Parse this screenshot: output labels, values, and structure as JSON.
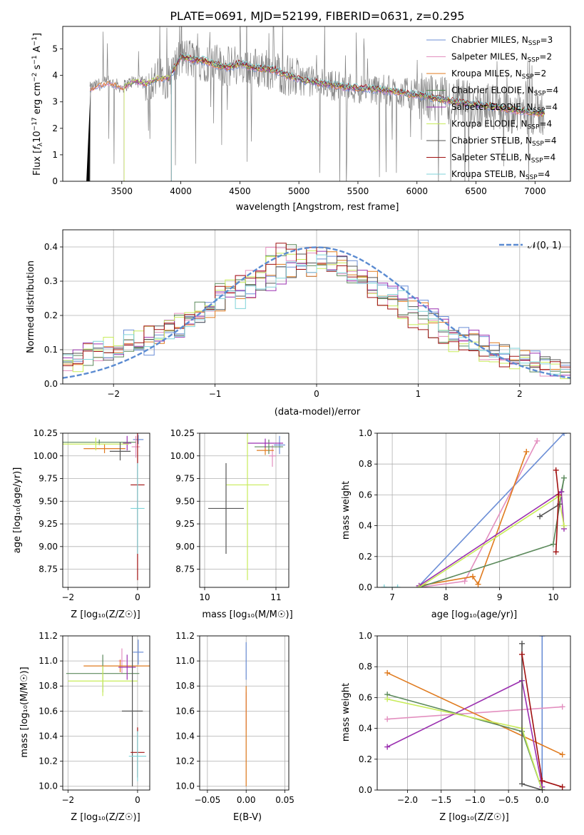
{
  "figure_title": "PLATE=0691, MJD=52199, FIBERID=0631, z=0.295",
  "colors": {
    "chabrier_miles": "#6b8ed6",
    "salpeter_miles": "#e38fbf",
    "kroupa_miles": "#e07b1f",
    "chabrier_elodie": "#5c8a5c",
    "salpeter_elodie": "#9b30b0",
    "kroupa_elodie": "#c8ec5a",
    "chabrier_stelib": "#555555",
    "salpeter_stelib": "#a01010",
    "kroupa_stelib": "#7fd3d8",
    "data": "#808080",
    "normal": "#5b8bd1"
  },
  "panels": {
    "spectrum": {
      "ylabel": "Flux [$f_\\lambda 10^{-17}$ erg cm$^{-2}$ s$^{-1}$ A$^{-1}$]",
      "ylabel_plain": "Flux [fλ10⁻¹⁷ erg cm⁻² s⁻¹ A⁻¹]",
      "xlabel": "wavelength [Angstrom, rest frame]",
      "xlim": [
        3000,
        7300
      ],
      "ylim": [
        0,
        5.85
      ],
      "xticks": [
        "3500",
        "4000",
        "4500",
        "5000",
        "5500",
        "6000",
        "6500",
        "7000"
      ],
      "yticks": [
        "0",
        "1",
        "2",
        "3",
        "4",
        "5"
      ],
      "legend": [
        "Chabrier MILES, N_SSP=3",
        "Salpeter MILES, N_SSP=2",
        "Kroupa MILES, N_SSP=2",
        "Chabrier ELODIE, N_SSP=4",
        "Salpeter ELODIE, N_SSP=4",
        "Kroupa ELODIE, N_SSP=4",
        "Chabrier STELIB, N_SSP=4",
        "Salpeter STELIB, N_SSP=4",
        "Kroupa STELIB, N_SSP=4"
      ]
    },
    "residuals": {
      "ylabel": "Normed distribution",
      "xlabel": "(data-model)/error",
      "legend": "𝒩(0, 1)",
      "xlim": [
        -2.5,
        2.5
      ],
      "ylim": [
        0,
        0.45
      ],
      "xticks": [
        "−2",
        "−1",
        "0",
        "1",
        "2"
      ],
      "yticks": [
        "0.0",
        "0.1",
        "0.2",
        "0.3",
        "0.4"
      ]
    },
    "z_age": {
      "ylabel": "age  [log₁₀(age/yr)]",
      "xlabel": "Z [log₁₀(Z/Z☉)]",
      "xlim": [
        -2.15,
        0.35
      ],
      "ylim": [
        8.55,
        10.25
      ],
      "xticks": [
        "−2",
        "0"
      ],
      "yticks": [
        "8.75",
        "9.00",
        "9.25",
        "9.50",
        "9.75",
        "10.00",
        "10.25"
      ]
    },
    "mass_age": {
      "xlabel": "mass [log₁₀(M/M☉)]",
      "xlim": [
        9.93,
        11.18
      ],
      "ylim": [
        8.55,
        10.25
      ],
      "xticks": [
        "10",
        "11"
      ],
      "yticks": [
        "8.75",
        "9.00",
        "9.25",
        "9.50",
        "9.75",
        "10.00",
        "10.25"
      ]
    },
    "age_weight": {
      "ylabel": "mass weight",
      "xlabel": "age  [log₁₀(age/yr)]",
      "xlim": [
        6.72,
        10.32
      ],
      "ylim": [
        0,
        1
      ],
      "xticks": [
        "7",
        "8",
        "9",
        "10"
      ],
      "yticks": [
        "0.0",
        "0.2",
        "0.4",
        "0.6",
        "0.8",
        "1.0"
      ]
    },
    "z_mass": {
      "ylabel": "mass [log₁₀(M/M☉)]",
      "xlabel": "Z [log₁₀(Z/Z☉)]",
      "xlim": [
        -2.15,
        0.35
      ],
      "ylim": [
        9.97,
        11.2
      ],
      "xticks": [
        "−2",
        "0"
      ],
      "yticks": [
        "10.0",
        "10.2",
        "10.4",
        "10.6",
        "10.8",
        "11.0",
        "11.2"
      ]
    },
    "ebv_mass": {
      "xlabel": "E(B-V)",
      "xlim": [
        -0.06,
        0.055
      ],
      "ylim": [
        9.97,
        11.2
      ],
      "xticks": [
        "−0.05",
        "0.00",
        "0.05"
      ],
      "yticks": [
        "10.0",
        "10.2",
        "10.4",
        "10.6",
        "10.8",
        "11.0",
        "11.2"
      ]
    },
    "z_weight": {
      "ylabel": "mass weight",
      "xlabel": "Z [log₁₀(Z/Z☉)]",
      "xlim": [
        -2.45,
        0.42
      ],
      "ylim": [
        0,
        1
      ],
      "xticks": [
        "−2.0",
        "−1.5",
        "−1.0",
        "−0.5",
        "0.0"
      ],
      "yticks": [
        "0.0",
        "0.2",
        "0.4",
        "0.6",
        "0.8",
        "1.0"
      ]
    }
  },
  "chart_data": [
    {
      "type": "line",
      "title": "PLATE=0691, MJD=52199, FIBERID=0631, z=0.295",
      "xlabel": "wavelength [Angstrom, rest frame]",
      "ylabel": "Flux [fλ10⁻¹⁷ erg cm⁻² s⁻¹ A⁻¹]",
      "xlim": [
        3000,
        7300
      ],
      "ylim": [
        0,
        5.85
      ],
      "grid": false,
      "legend_position": "right",
      "series_names": [
        "Chabrier MILES, N_SSP=3",
        "Salpeter MILES, N_SSP=2",
        "Kroupa MILES, N_SSP=2",
        "Chabrier ELODIE, N_SSP=4",
        "Salpeter ELODIE, N_SSP=4",
        "Kroupa ELODIE, N_SSP=4",
        "Chabrier STELIB, N_SSP=4",
        "Salpeter STELIB, N_SSP=4",
        "Kroupa STELIB, N_SSP=4"
      ],
      "model_envelope": {
        "x": [
          3230,
          3300,
          3400,
          3500,
          3600,
          3700,
          3800,
          3900,
          4000,
          4100,
          4200,
          4300,
          4400,
          4500,
          4600,
          4700,
          4800,
          4900,
          5000,
          5200,
          5400,
          5600,
          5800,
          6000,
          6200,
          6400,
          6600,
          6800,
          7000,
          7080
        ],
        "y": [
          3.5,
          3.65,
          3.75,
          3.55,
          3.8,
          3.7,
          3.9,
          3.9,
          4.7,
          4.6,
          4.55,
          4.4,
          4.3,
          4.45,
          4.3,
          4.25,
          4.2,
          4.0,
          3.85,
          3.7,
          3.55,
          3.5,
          3.4,
          3.25,
          3.1,
          2.95,
          2.85,
          2.7,
          2.6,
          2.55
        ]
      }
    },
    {
      "type": "bar",
      "xlabel": "(data-model)/error",
      "ylabel": "Normed distribution",
      "xlim": [
        -2.5,
        2.5
      ],
      "ylim": [
        0,
        0.45
      ],
      "grid": true,
      "legend_position": "top-right",
      "bin_edges_start": -2.5,
      "bin_width": 0.1,
      "series": [
        {
          "values": [
            0.07,
            0.08,
            0.09,
            0.1,
            0.08,
            0.09,
            0.13,
            0.12,
            0.11,
            0.14,
            0.16,
            0.15,
            0.18,
            0.2,
            0.21,
            0.24,
            0.26,
            0.25,
            0.28,
            0.3,
            0.29,
            0.32,
            0.33,
            0.35,
            0.34,
            0.37,
            0.36,
            0.35,
            0.33,
            0.32,
            0.3,
            0.28,
            0.27,
            0.26,
            0.24,
            0.22,
            0.2,
            0.18,
            0.16,
            0.14,
            0.13,
            0.12,
            0.1,
            0.09,
            0.08,
            0.07,
            0.07,
            0.06,
            0.05,
            0.05
          ]
        },
        {
          "values": [
            0.05,
            0.06,
            0.08,
            0.09,
            0.11,
            0.1,
            0.12,
            0.13,
            0.14,
            0.13,
            0.17,
            0.19,
            0.2,
            0.22,
            0.24,
            0.27,
            0.29,
            0.3,
            0.32,
            0.34,
            0.37,
            0.39,
            0.38,
            0.36,
            0.37,
            0.35,
            0.34,
            0.33,
            0.31,
            0.29,
            0.27,
            0.25,
            0.23,
            0.21,
            0.19,
            0.17,
            0.16,
            0.14,
            0.12,
            0.11,
            0.1,
            0.09,
            0.08,
            0.07,
            0.06,
            0.06,
            0.05,
            0.05,
            0.04,
            0.04
          ]
        }
      ],
      "reference_curve": {
        "name": "𝒩(0, 1)",
        "mean": 0,
        "sigma": 1
      }
    },
    {
      "type": "scatter",
      "xlabel": "Z [log₁₀(Z/Z☉)]",
      "ylabel": "age  [log₁₀(age/yr)]",
      "xlim": [
        -2.15,
        0.35
      ],
      "ylim": [
        8.55,
        10.25
      ],
      "grid": true,
      "points": [
        {
          "x": 0.02,
          "y": 10.18,
          "xerr": 0.15,
          "yerr": 0.05
        },
        {
          "x": -0.05,
          "y": 10.1,
          "xerr": 0.12,
          "yerr": 0.12
        },
        {
          "x": -0.95,
          "y": 10.08,
          "xerr": 0.6,
          "yerr": 0.05
        },
        {
          "x": -1.1,
          "y": 10.15,
          "xerr": 1.05,
          "yerr": 0.03
        },
        {
          "x": -0.3,
          "y": 10.14,
          "xerr": 0.12,
          "yerr": 0.08
        },
        {
          "x": -1.2,
          "y": 10.13,
          "xerr": 0.95,
          "yerr": 0.07
        },
        {
          "x": -0.5,
          "y": 10.05,
          "xerr": 0.3,
          "yerr": 0.1
        },
        {
          "x": 0.0,
          "y": 9.68,
          "xerr": 0.2,
          "yerr": 1.05
        },
        {
          "x": 0.0,
          "y": 9.42,
          "xerr": 0.2,
          "yerr": 0.5
        }
      ]
    },
    {
      "type": "scatter",
      "xlabel": "mass [log₁₀(M/M☉)]",
      "xlim": [
        9.93,
        11.18
      ],
      "ylim": [
        8.55,
        10.25
      ],
      "grid": true,
      "points": [
        {
          "x": 11.05,
          "y": 10.12,
          "xerr": 0.08,
          "yerr": 0.1
        },
        {
          "x": 10.95,
          "y": 10.0,
          "xerr": 0.05,
          "yerr": 0.12
        },
        {
          "x": 10.85,
          "y": 10.06,
          "xerr": 0.12,
          "yerr": 0.05
        },
        {
          "x": 10.9,
          "y": 10.1,
          "xerr": 0.2,
          "yerr": 0.08
        },
        {
          "x": 10.85,
          "y": 10.14,
          "xerr": 0.25,
          "yerr": 0.05
        },
        {
          "x": 10.6,
          "y": 9.68,
          "xerr": 0.3,
          "yerr": 1.05
        },
        {
          "x": 10.3,
          "y": 9.42,
          "xerr": 0.25,
          "yerr": 0.5
        }
      ]
    },
    {
      "type": "line",
      "xlabel": "age  [log₁₀(age/yr)]",
      "ylabel": "mass weight",
      "xlim": [
        6.72,
        10.32
      ],
      "ylim": [
        0,
        1
      ],
      "grid": true,
      "series": [
        {
          "x": [
            7.5,
            10.2
          ],
          "y": [
            0.01,
            1.0
          ]
        },
        {
          "x": [
            7.5,
            8.35,
            9.7
          ],
          "y": [
            0.0,
            0.04,
            0.95
          ]
        },
        {
          "x": [
            7.5,
            8.5,
            8.6,
            9.5
          ],
          "y": [
            0.01,
            0.07,
            0.02,
            0.88
          ]
        },
        {
          "x": [
            7.5,
            10.0,
            10.2,
            10.15
          ],
          "y": [
            0.0,
            0.28,
            0.71,
            0.62
          ]
        },
        {
          "x": [
            7.5,
            10.15,
            10.2
          ],
          "y": [
            0.01,
            0.62,
            0.38
          ]
        },
        {
          "x": [
            7.5,
            10.1,
            10.2
          ],
          "y": [
            0.0,
            0.59,
            0.4
          ]
        },
        {
          "x": [
            9.75,
            10.12
          ],
          "y": [
            0.46,
            0.54
          ]
        },
        {
          "x": [
            10.05,
            10.1,
            10.05
          ],
          "y": [
            0.76,
            0.6,
            0.23
          ]
        },
        {
          "x": [
            6.85,
            7.1
          ],
          "y": [
            0.0,
            0.0
          ]
        }
      ]
    },
    {
      "type": "scatter",
      "xlabel": "Z [log₁₀(Z/Z☉)]",
      "ylabel": "mass [log₁₀(M/M☉)]",
      "xlim": [
        -2.15,
        0.35
      ],
      "ylim": [
        9.97,
        11.2
      ],
      "grid": true,
      "points": [
        {
          "x": 0.02,
          "y": 11.07,
          "xerr": 0.15,
          "yerr": 0.1
        },
        {
          "x": -0.45,
          "y": 11.0,
          "xerr": 0.1,
          "yerr": 0.1
        },
        {
          "x": -0.5,
          "y": 10.96,
          "xerr": 1.05,
          "yerr": 0.05
        },
        {
          "x": -1.0,
          "y": 10.9,
          "xerr": 1.05,
          "yerr": 0.15
        },
        {
          "x": -0.3,
          "y": 10.95,
          "xerr": 0.25,
          "yerr": 0.1
        },
        {
          "x": -1.0,
          "y": 10.84,
          "xerr": 1.0,
          "yerr": 0.12
        },
        {
          "x": -0.15,
          "y": 10.6,
          "xerr": 0.3,
          "yerr": 0.6
        },
        {
          "x": 0.0,
          "y": 10.27,
          "xerr": 0.2,
          "yerr": 0.2
        },
        {
          "x": 0.0,
          "y": 10.24,
          "xerr": 0.25,
          "yerr": 0.2
        }
      ]
    },
    {
      "type": "scatter",
      "xlabel": "E(B-V)",
      "xlim": [
        -0.06,
        0.055
      ],
      "ylim": [
        9.97,
        11.2
      ],
      "grid": true,
      "points": [
        {
          "x": 0.0,
          "y": 11.0,
          "xerr": 0.0,
          "yerr": 0.15
        },
        {
          "x": 0.0,
          "y": 10.6,
          "xerr": 0.0,
          "yerr": 0.15
        },
        {
          "x": 0.0,
          "y": 10.4,
          "xerr": 0.0,
          "yerr": 0.4
        }
      ]
    },
    {
      "type": "line",
      "xlabel": "Z [log₁₀(Z/Z☉)]",
      "ylabel": "mass weight",
      "xlim": [
        -2.45,
        0.42
      ],
      "ylim": [
        0,
        1
      ],
      "grid": true,
      "series": [
        {
          "x": [
            0.0,
            0.0
          ],
          "y": [
            0.0,
            1.0
          ]
        },
        {
          "x": [
            -2.3,
            0.3
          ],
          "y": [
            0.46,
            0.54
          ]
        },
        {
          "x": [
            -2.3,
            0.3
          ],
          "y": [
            0.76,
            0.23
          ]
        },
        {
          "x": [
            -2.3,
            -0.3,
            0.0
          ],
          "y": [
            0.62,
            0.38,
            0.0
          ]
        },
        {
          "x": [
            -2.3,
            -0.3,
            0.0
          ],
          "y": [
            0.28,
            0.71,
            0.02
          ]
        },
        {
          "x": [
            -2.3,
            -0.3,
            0.0
          ],
          "y": [
            0.59,
            0.4,
            0.0
          ]
        },
        {
          "x": [
            -0.3,
            -0.3,
            0.0
          ],
          "y": [
            0.95,
            0.04,
            0.0
          ]
        },
        {
          "x": [
            -0.3,
            0.0,
            0.3
          ],
          "y": [
            0.88,
            0.06,
            0.02
          ]
        }
      ]
    }
  ]
}
